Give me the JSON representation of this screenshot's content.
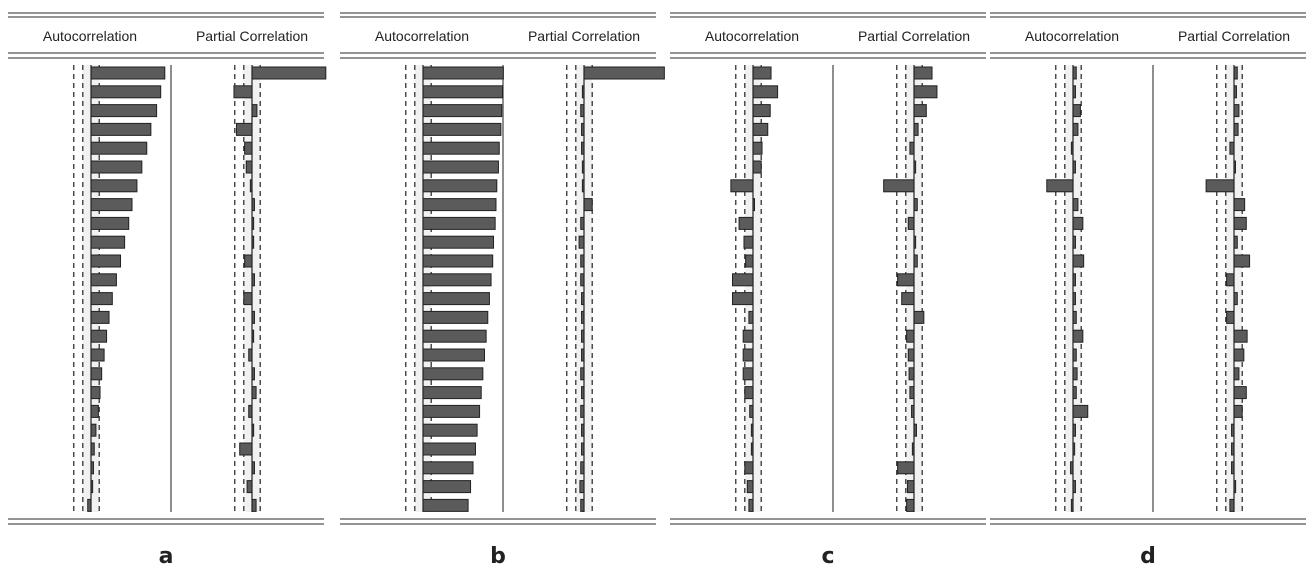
{
  "chart_data": [
    {
      "type": "bar",
      "panel_label": "a",
      "headers": [
        "Autocorrelation",
        "Partial Correlation"
      ],
      "lags": 24,
      "confidence": 0.1,
      "acf": [
        0.9,
        0.85,
        0.8,
        0.73,
        0.68,
        0.62,
        0.56,
        0.5,
        0.46,
        0.41,
        0.36,
        0.31,
        0.26,
        0.22,
        0.19,
        0.16,
        0.13,
        0.11,
        0.09,
        0.06,
        0.04,
        0.03,
        0.02,
        -0.04
      ],
      "pacf": [
        0.9,
        -0.22,
        0.06,
        -0.19,
        -0.09,
        -0.07,
        -0.02,
        0.03,
        0.02,
        0.02,
        -0.09,
        0.03,
        -0.1,
        0.03,
        0.02,
        -0.04,
        0.03,
        0.05,
        -0.04,
        0.02,
        -0.15,
        0.03,
        -0.06,
        0.05
      ]
    },
    {
      "type": "bar",
      "panel_label": "b",
      "headers": [
        "Autocorrelation",
        "Partial Correlation"
      ],
      "lags": 24,
      "confidence": 0.1,
      "acf": [
        0.98,
        0.97,
        0.96,
        0.95,
        0.93,
        0.92,
        0.9,
        0.89,
        0.88,
        0.86,
        0.85,
        0.83,
        0.81,
        0.79,
        0.77,
        0.75,
        0.73,
        0.71,
        0.69,
        0.66,
        0.64,
        0.61,
        0.58,
        0.55
      ],
      "pacf": [
        0.98,
        -0.02,
        -0.04,
        -0.03,
        -0.03,
        -0.02,
        -0.02,
        0.1,
        -0.04,
        -0.06,
        -0.04,
        -0.04,
        -0.03,
        -0.03,
        -0.03,
        -0.03,
        -0.04,
        -0.03,
        -0.04,
        -0.03,
        -0.03,
        -0.04,
        -0.05,
        -0.04
      ]
    },
    {
      "type": "bar",
      "panel_label": "c",
      "headers": [
        "Autocorrelation",
        "Partial Correlation"
      ],
      "lags": 24,
      "confidence": 0.1,
      "acf": [
        0.22,
        0.3,
        0.21,
        0.18,
        0.11,
        0.1,
        -0.27,
        0.0,
        -0.17,
        -0.11,
        -0.09,
        -0.25,
        -0.25,
        -0.05,
        -0.12,
        -0.12,
        -0.12,
        -0.1,
        -0.04,
        -0.02,
        -0.02,
        -0.1,
        -0.07,
        -0.05
      ],
      "pacf": [
        0.22,
        0.28,
        0.15,
        0.05,
        -0.05,
        0.02,
        -0.37,
        0.04,
        -0.07,
        0.02,
        0.04,
        -0.2,
        -0.15,
        0.12,
        -0.09,
        -0.07,
        -0.06,
        -0.05,
        -0.03,
        0.03,
        -0.02,
        -0.2,
        -0.08,
        -0.09
      ]
    },
    {
      "type": "bar",
      "panel_label": "d",
      "headers": [
        "Autocorrelation",
        "Partial Correlation"
      ],
      "lags": 24,
      "confidence": 0.1,
      "acf": [
        0.04,
        0.03,
        0.09,
        0.06,
        -0.02,
        0.03,
        -0.32,
        0.06,
        0.12,
        0.03,
        0.13,
        0.03,
        0.03,
        0.04,
        0.12,
        0.04,
        0.05,
        0.04,
        0.18,
        0.03,
        0.02,
        -0.03,
        0.03,
        -0.02
      ],
      "pacf": [
        0.04,
        0.03,
        0.06,
        0.05,
        -0.05,
        0.0,
        -0.34,
        0.13,
        0.15,
        0.04,
        0.19,
        -0.09,
        0.04,
        -0.09,
        0.16,
        0.12,
        0.06,
        0.15,
        0.1,
        -0.03,
        -0.03,
        -0.03,
        0.02,
        -0.05
      ]
    }
  ]
}
